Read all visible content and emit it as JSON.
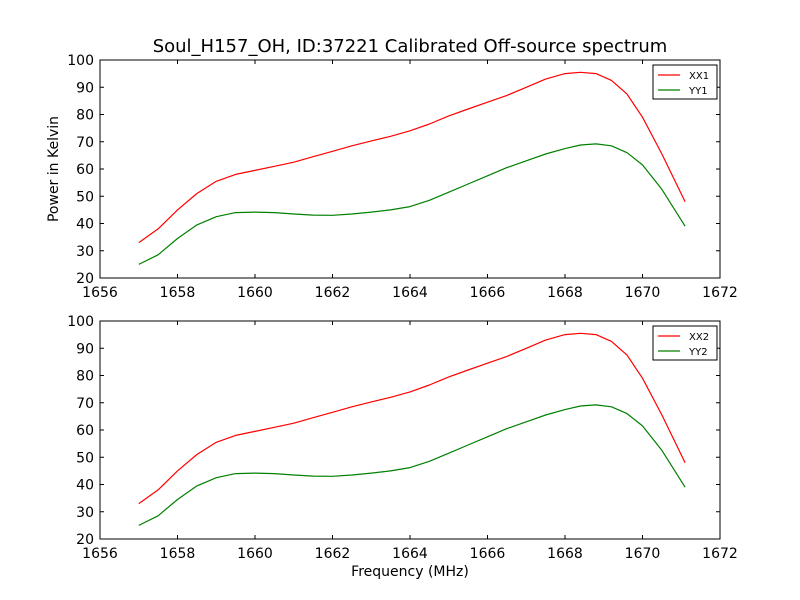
{
  "title": "Soul_H157_OH, ID:37221 Calibrated Off-source spectrum",
  "xlabel": "Frequency (MHz)",
  "ylabel": "Power in Kelvin",
  "chart_data": [
    {
      "type": "line",
      "xlim": [
        1656,
        1672
      ],
      "ylim": [
        20,
        100
      ],
      "x_ticks": [
        "1656",
        "1658",
        "1660",
        "1662",
        "1664",
        "1666",
        "1668",
        "1670",
        "1672"
      ],
      "y_ticks": [
        "20",
        "30",
        "40",
        "50",
        "60",
        "70",
        "80",
        "90",
        "100"
      ],
      "legend_position": "top-right",
      "grid": false,
      "series": [
        {
          "name": "XX1",
          "color": "#ff0000",
          "x": [
            1657.0,
            1657.5,
            1658.0,
            1658.5,
            1659.0,
            1659.5,
            1660.0,
            1660.5,
            1661.0,
            1661.5,
            1662.0,
            1662.5,
            1663.0,
            1663.5,
            1664.0,
            1664.5,
            1665.0,
            1665.5,
            1666.0,
            1666.5,
            1667.0,
            1667.5,
            1668.0,
            1668.4,
            1668.8,
            1669.2,
            1669.6,
            1670.0,
            1670.5,
            1671.1
          ],
          "y": [
            33,
            38,
            45,
            51,
            55.5,
            58,
            59.5,
            61,
            62.5,
            64.5,
            66.5,
            68.5,
            70.3,
            72,
            74,
            76.5,
            79.5,
            82,
            84.5,
            87,
            90,
            93,
            95,
            95.5,
            95,
            92.5,
            87.5,
            79,
            65.5,
            48
          ]
        },
        {
          "name": "YY1",
          "color": "#008000",
          "x": [
            1657.0,
            1657.5,
            1658.0,
            1658.5,
            1659.0,
            1659.5,
            1660.0,
            1660.5,
            1661.0,
            1661.5,
            1662.0,
            1662.5,
            1663.0,
            1663.5,
            1664.0,
            1664.5,
            1665.0,
            1665.5,
            1666.0,
            1666.5,
            1667.0,
            1667.5,
            1668.0,
            1668.4,
            1668.8,
            1669.2,
            1669.6,
            1670.0,
            1670.5,
            1671.1
          ],
          "y": [
            25,
            28.5,
            34.5,
            39.5,
            42.5,
            44,
            44.2,
            44,
            43.5,
            43.1,
            43,
            43.5,
            44.2,
            45,
            46.2,
            48.5,
            51.5,
            54.5,
            57.5,
            60.5,
            63,
            65.5,
            67.5,
            68.8,
            69.2,
            68.5,
            66,
            61.5,
            52.5,
            39
          ]
        }
      ]
    },
    {
      "type": "line",
      "xlim": [
        1656,
        1672
      ],
      "ylim": [
        20,
        100
      ],
      "x_ticks": [
        "1656",
        "1658",
        "1660",
        "1662",
        "1664",
        "1666",
        "1668",
        "1670",
        "1672"
      ],
      "y_ticks": [
        "20",
        "30",
        "40",
        "50",
        "60",
        "70",
        "80",
        "90",
        "100"
      ],
      "legend_position": "top-right",
      "grid": false,
      "series": [
        {
          "name": "XX2",
          "color": "#ff0000",
          "x": [
            1657.0,
            1657.5,
            1658.0,
            1658.5,
            1659.0,
            1659.5,
            1660.0,
            1660.5,
            1661.0,
            1661.5,
            1662.0,
            1662.5,
            1663.0,
            1663.5,
            1664.0,
            1664.5,
            1665.0,
            1665.5,
            1666.0,
            1666.5,
            1667.0,
            1667.5,
            1668.0,
            1668.4,
            1668.8,
            1669.2,
            1669.6,
            1670.0,
            1670.5,
            1671.1
          ],
          "y": [
            33,
            38,
            45,
            51,
            55.5,
            58,
            59.5,
            61,
            62.5,
            64.5,
            66.5,
            68.5,
            70.3,
            72,
            74,
            76.5,
            79.5,
            82,
            84.5,
            87,
            90,
            93,
            95,
            95.5,
            95,
            92.5,
            87.5,
            79,
            65.5,
            48
          ]
        },
        {
          "name": "YY2",
          "color": "#008000",
          "x": [
            1657.0,
            1657.5,
            1658.0,
            1658.5,
            1659.0,
            1659.5,
            1660.0,
            1660.5,
            1661.0,
            1661.5,
            1662.0,
            1662.5,
            1663.0,
            1663.5,
            1664.0,
            1664.5,
            1665.0,
            1665.5,
            1666.0,
            1666.5,
            1667.0,
            1667.5,
            1668.0,
            1668.4,
            1668.8,
            1669.2,
            1669.6,
            1670.0,
            1670.5,
            1671.1
          ],
          "y": [
            25,
            28.5,
            34.5,
            39.5,
            42.5,
            44,
            44.2,
            44,
            43.5,
            43.1,
            43,
            43.5,
            44.2,
            45,
            46.2,
            48.5,
            51.5,
            54.5,
            57.5,
            60.5,
            63,
            65.5,
            67.5,
            68.8,
            69.2,
            68.5,
            66,
            61.5,
            52.5,
            39
          ]
        }
      ]
    }
  ]
}
